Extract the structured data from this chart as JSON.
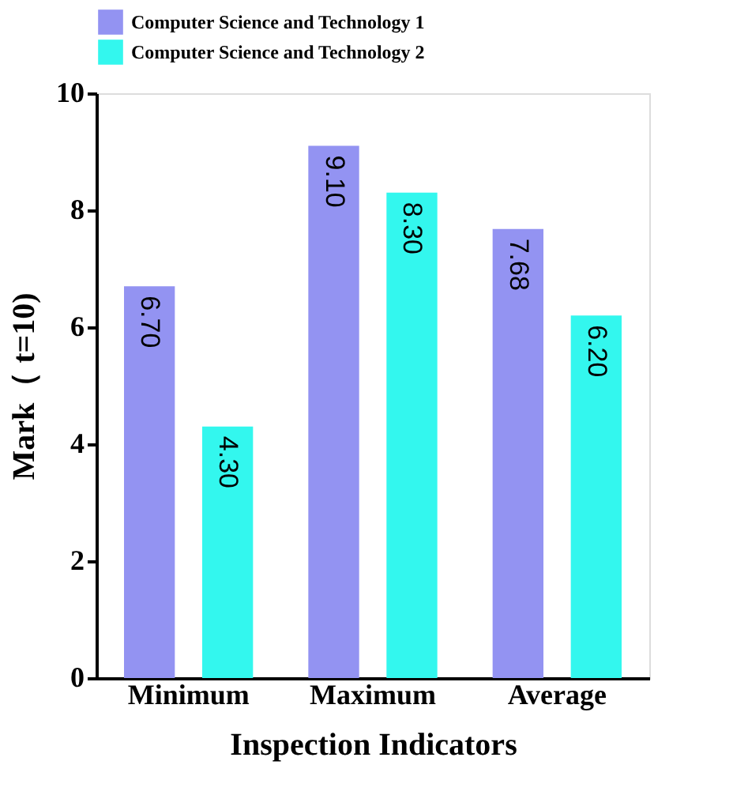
{
  "chart_data": {
    "type": "bar",
    "xlabel": "Inspection Indicators",
    "ylabel": "Mark（ t=10)",
    "categories": [
      "Minimum",
      "Maximum",
      "Average"
    ],
    "series": [
      {
        "name": "Computer Science and Technology 1",
        "color": "#9393f2",
        "values": [
          6.7,
          9.1,
          7.68
        ],
        "value_labels": [
          "6.70",
          "9.10",
          "7.68"
        ]
      },
      {
        "name": "Computer Science and Technology 2",
        "color": "#33f7ee",
        "values": [
          4.3,
          8.3,
          6.2
        ],
        "value_labels": [
          "4.30",
          "8.30",
          "6.20"
        ]
      }
    ],
    "ylim": [
      0,
      10
    ],
    "yticks": [
      0,
      2,
      4,
      6,
      8,
      10
    ],
    "grid": false,
    "legend": "top"
  }
}
